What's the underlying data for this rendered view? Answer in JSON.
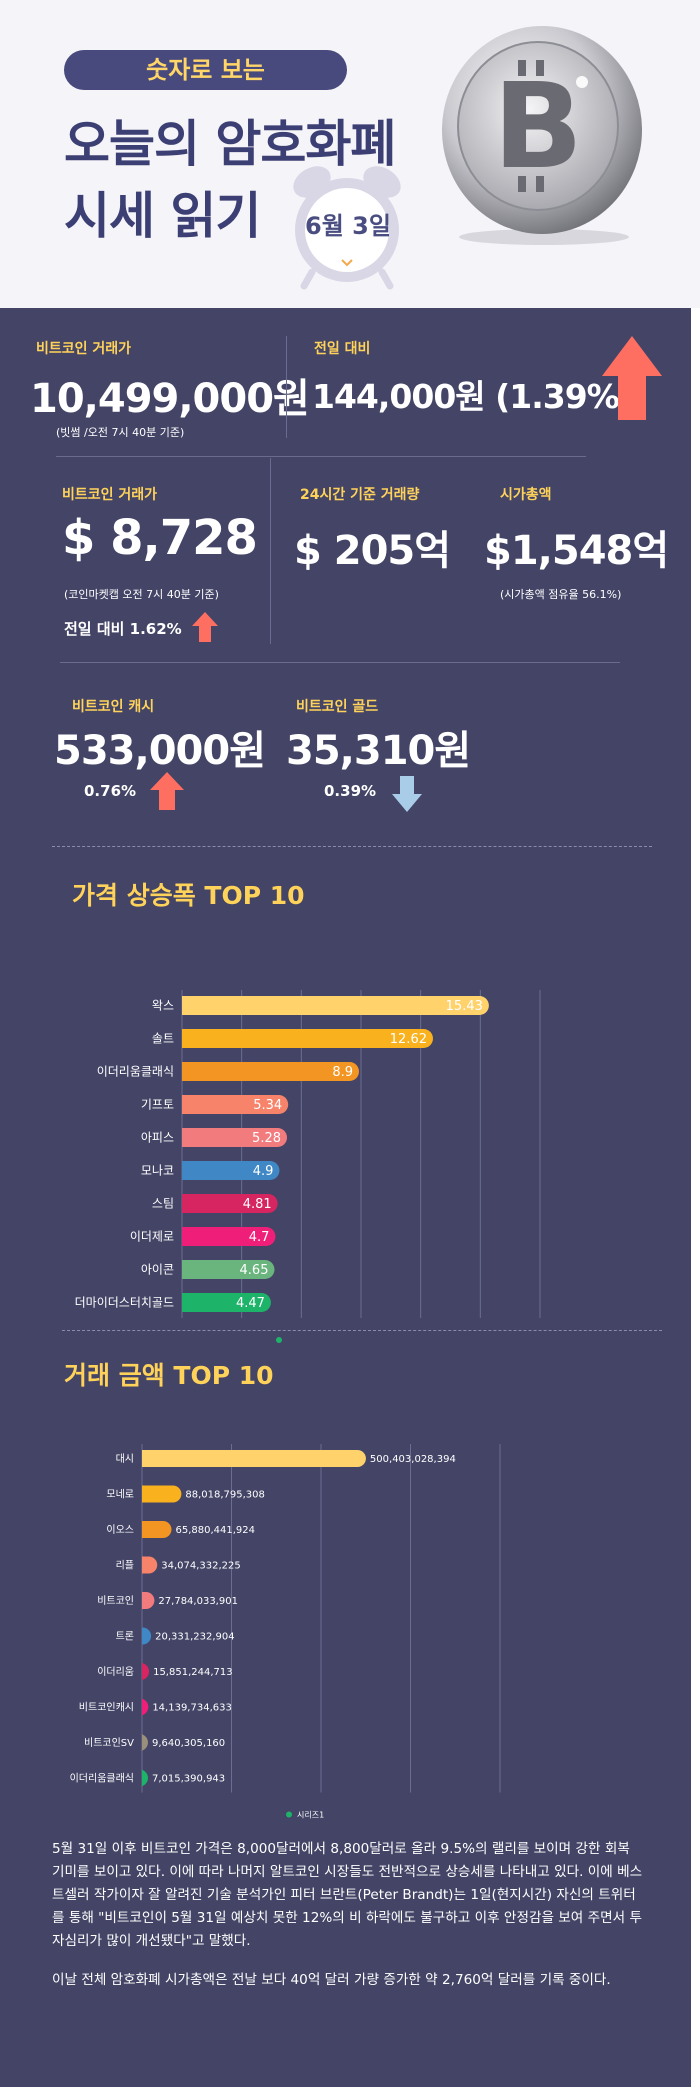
{
  "header": {
    "badge": "숫자로 보는",
    "title_line1": "오늘의 암호화폐",
    "title_line2": "시세 읽기",
    "date": "6월 3일"
  },
  "colors": {
    "accent_yellow": "#ffd35a",
    "dark_bg": "#434466",
    "up_arrow": "#ff6f61",
    "down_arrow": "#a9cde8"
  },
  "stats": {
    "btc_krw": {
      "label": "비트코인 거래가",
      "value": "10,499,000원",
      "note": "(빗썸 /오전 7시 40분 기준)"
    },
    "prev_day": {
      "label": "전일 대비",
      "value": "144,000원 (1.39%)",
      "direction": "up"
    },
    "btc_usd": {
      "label": "비트코인 거래가",
      "value": "$ 8,728",
      "note": "(코인마켓캡 오전 7시 40분 기준)",
      "change": "전일 대비 1.62%",
      "direction": "up"
    },
    "volume_24h": {
      "label": "24시간 기준 거래량",
      "value": "$ 205억"
    },
    "market_cap": {
      "label": "시가총액",
      "value": "$1,548억",
      "note": "(시가총액 점유율 56.1%)"
    },
    "bch": {
      "label": "비트코인 캐시",
      "value": "533,000원",
      "change": "0.76%",
      "direction": "up"
    },
    "btg": {
      "label": "비트코인 골드",
      "value": "35,310원",
      "change": "0.39%",
      "direction": "down"
    }
  },
  "chart_data": [
    {
      "type": "bar",
      "orientation": "horizontal",
      "title": "가격 상승폭 TOP 10",
      "categories": [
        "왁스",
        "솔트",
        "이더리움클래식",
        "기프토",
        "아피스",
        "모나코",
        "스팀",
        "이더제로",
        "아이콘",
        "더마이더스터치골드"
      ],
      "values": [
        15.43,
        12.62,
        8.9,
        5.34,
        5.28,
        4.9,
        4.81,
        4.7,
        4.65,
        4.47
      ],
      "value_labels": [
        "15.43",
        "12.62",
        "8.9",
        "5.34",
        "5.28",
        "4.9",
        "4.81",
        "4.7",
        "4.65",
        "4.47"
      ],
      "colors": [
        "#ffd26b",
        "#f9b21d",
        "#f29522",
        "#f6836a",
        "#f27b7d",
        "#3f88c5",
        "#d62560",
        "#ef1f79",
        "#6ab47e",
        "#1db46a"
      ],
      "xlim": [
        0,
        18
      ],
      "grid": true,
      "legend_dot_color": "#1db46a"
    },
    {
      "type": "bar",
      "orientation": "horizontal",
      "title": "거래 금액 TOP 10",
      "categories": [
        "대시",
        "모네로",
        "이오스",
        "리플",
        "비트코인",
        "트론",
        "이더리움",
        "비트코인캐시",
        "비트코인SV",
        "이더리움클래식"
      ],
      "values": [
        500403028394,
        88018795308,
        65880441924,
        34074332225,
        27784033901,
        20331232904,
        15851244713,
        14139734633,
        9640305160,
        7015390943
      ],
      "value_labels": [
        "500,403,028,394",
        "88,018,795,308",
        "65,880,441,924",
        "34,074,332,225",
        "27,784,033,901",
        "20,331,232,904",
        "15,851,244,713",
        "14,139,734,633",
        "9,640,305,160",
        "7,015,390,943"
      ],
      "colors": [
        "#ffd26b",
        "#f9b21d",
        "#f29522",
        "#f6836a",
        "#f27b7d",
        "#3f88c5",
        "#d62560",
        "#ef1f79",
        "#9a8f7b",
        "#1db46a"
      ],
      "xlim": [
        0,
        800000000000
      ],
      "grid": true,
      "legend": "시리즈1",
      "legend_dot_color": "#1db46a"
    }
  ],
  "paragraphs": [
    "5월 31일 이후 비트코인 가격은 8,000달러에서 8,800달러로 올라 9.5%의 랠리를 보이며 강한 회복 기미를 보이고 있다. 이에 따라 나머지 알트코인 시장들도 전반적으로 상승세를 나타내고 있다. 이에 베스트셀러 작가이자 잘 알려진 기술 분석가인 피터 브란트(Peter Brandt)는 1일(현지시간) 자신의 트위터를 통해 \"비트코인이 5월 31일 예상치 못한 12%의 비 하락에도 불구하고 이후 안정감을 보여 주면서 투자심리가 많이 개선됐다\"고 말했다.",
    "이날 전체 암호화폐 시가총액은 전날 보다 40억 달러 가량 증가한 약 2,760억 달러를 기록 중이다."
  ]
}
